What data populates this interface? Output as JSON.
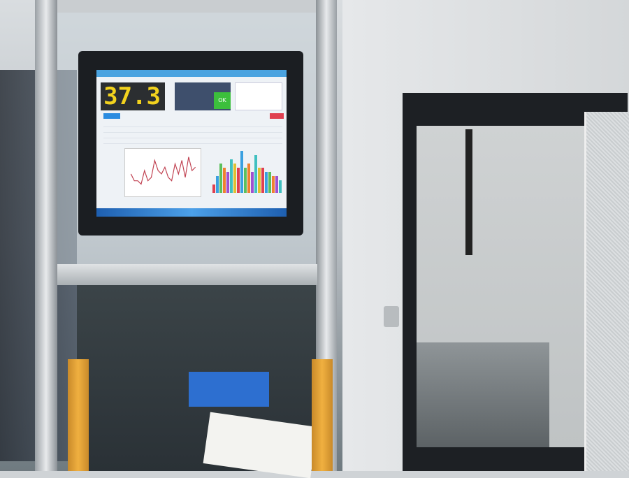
{
  "monitor": {
    "counter_display": "37.3",
    "status_result": "OK"
  },
  "colors": {
    "counter_digits": "#f2d21e",
    "ok_indicator": "#3cbf3c",
    "accent_blue": "#2b8ce0",
    "alert_red": "#e04050",
    "light_curtain": "#f0b040"
  },
  "line_chart_values": [
    5,
    3,
    3,
    2,
    6,
    3,
    4,
    9,
    6,
    5,
    7,
    4,
    3,
    8,
    5,
    9,
    4,
    10,
    6,
    7
  ],
  "bar_chart_values": [
    2,
    4,
    7,
    6,
    5,
    8,
    7,
    6,
    10,
    6,
    7,
    5,
    9,
    6,
    6,
    5,
    5,
    4,
    4,
    3
  ],
  "bar_chart_colors": [
    "#e04050",
    "#3aa0e0",
    "#5cc05c",
    "#f08030",
    "#a050d0",
    "#40c0c0",
    "#e0c030"
  ]
}
